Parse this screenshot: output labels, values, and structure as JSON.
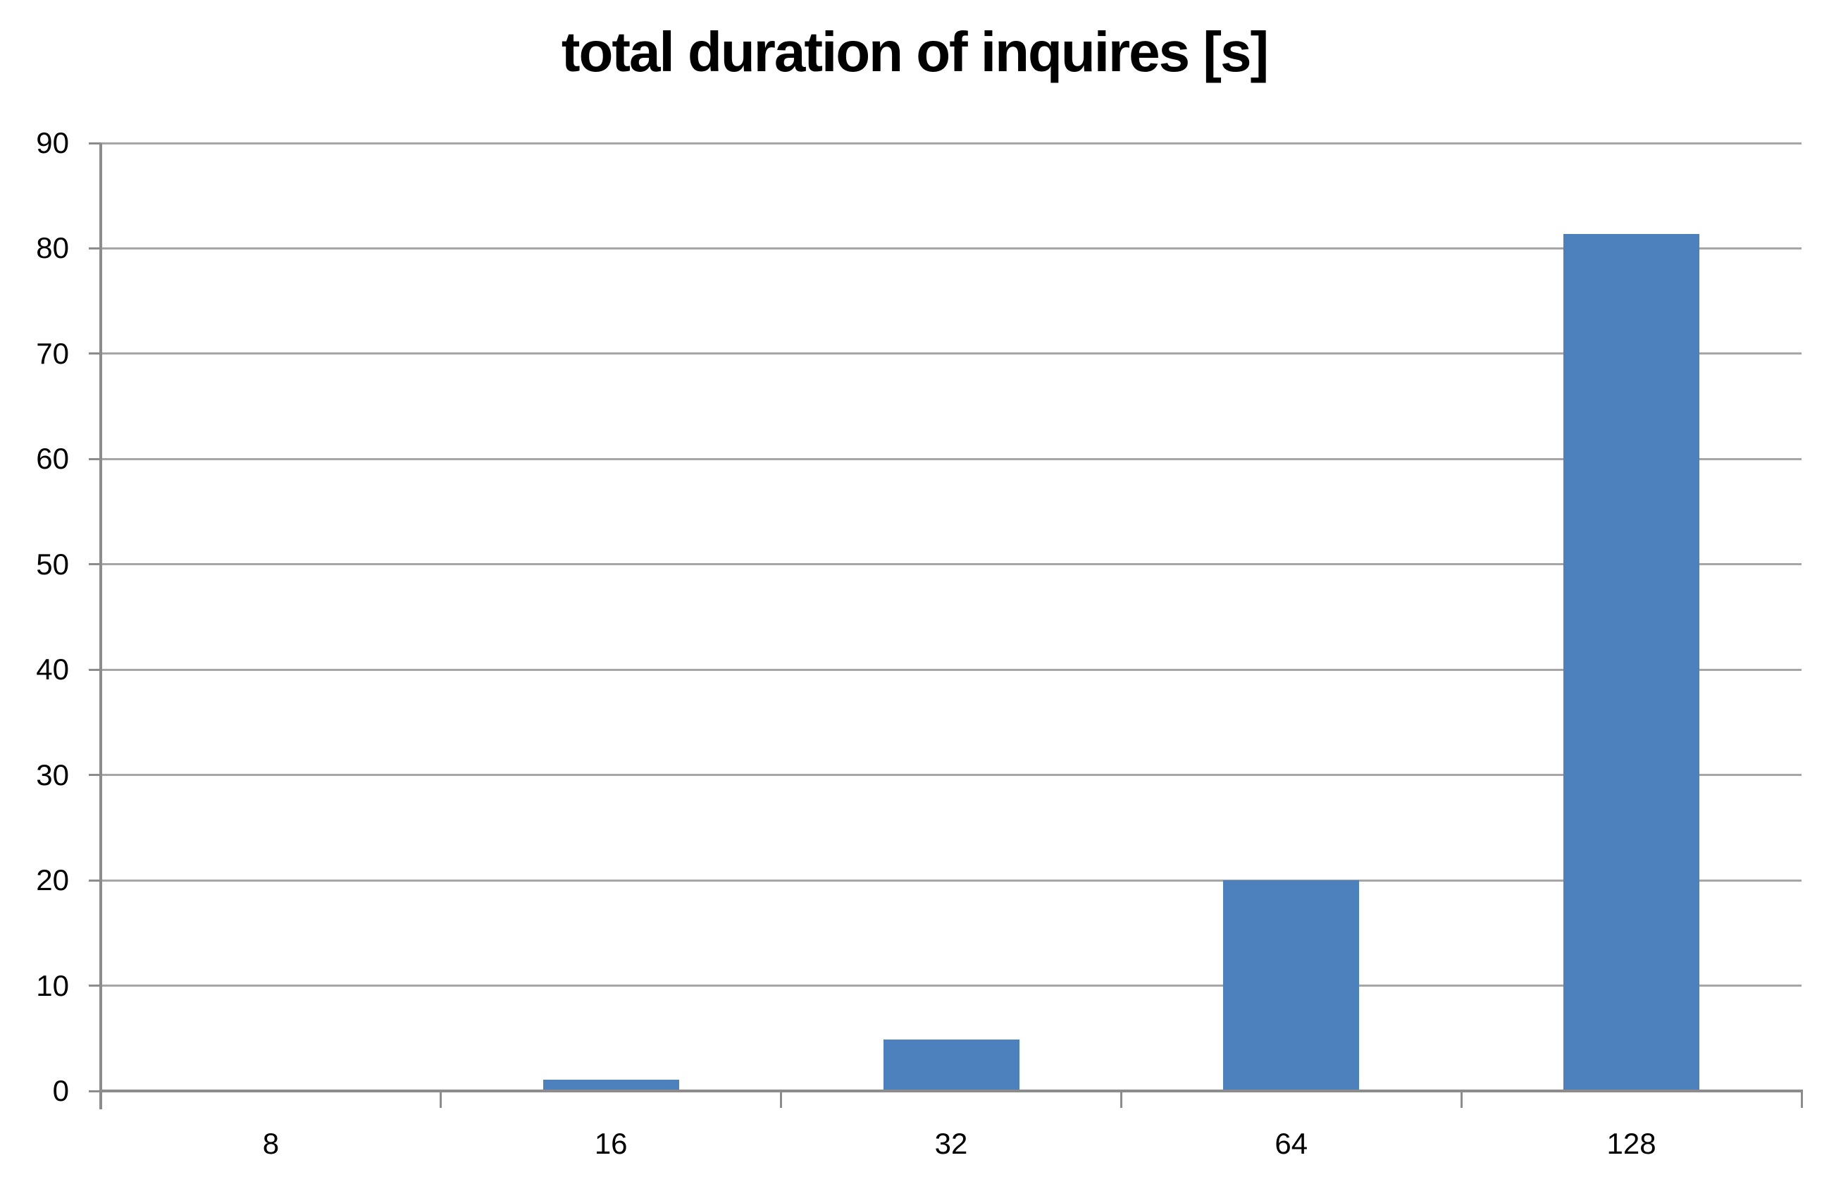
{
  "chart_data": {
    "type": "bar",
    "title": "total duration of inquires [s]",
    "categories": [
      "8",
      "16",
      "32",
      "64",
      "128"
    ],
    "values": [
      0.1,
      1.1,
      4.9,
      20,
      81.4
    ],
    "ylim": [
      0,
      90
    ],
    "ytick_step": 10,
    "ytick_labels": [
      "90",
      "80",
      "70",
      "60",
      "50",
      "40",
      "30",
      "20",
      "10",
      "0"
    ],
    "grid": "horizontal-only",
    "legend": "none"
  },
  "colors": {
    "bar": "#4D81BE",
    "gridline": "#A6A6A6",
    "axis": "#8C8C8C",
    "text": "#000000",
    "background": "#FFFFFF"
  }
}
